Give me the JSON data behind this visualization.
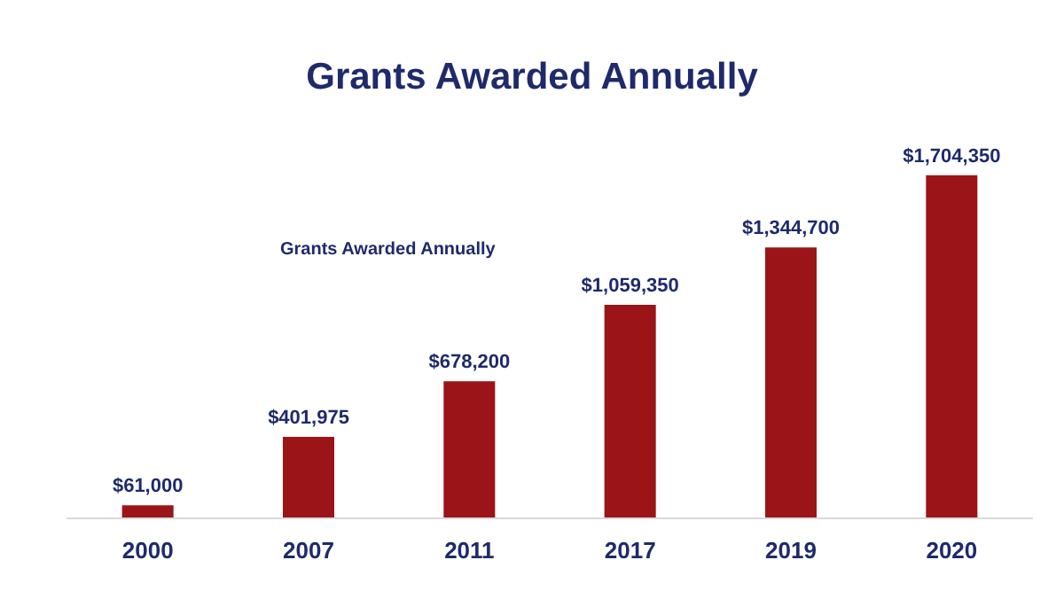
{
  "chart_data": {
    "type": "bar",
    "title": "Grants Awarded Annually",
    "annotations": [
      "Grants Awarded Annually"
    ],
    "categories": [
      "2000",
      "2007",
      "2011",
      "2017",
      "2019",
      "2020"
    ],
    "values": [
      61000,
      401975,
      678200,
      1059350,
      1344700,
      1704350
    ],
    "value_labels": [
      "$61,000",
      "$401,975",
      "$678,200",
      "$1,059,350",
      "$1,344,700",
      "$1,704,350"
    ],
    "color": "#9b1518"
  }
}
